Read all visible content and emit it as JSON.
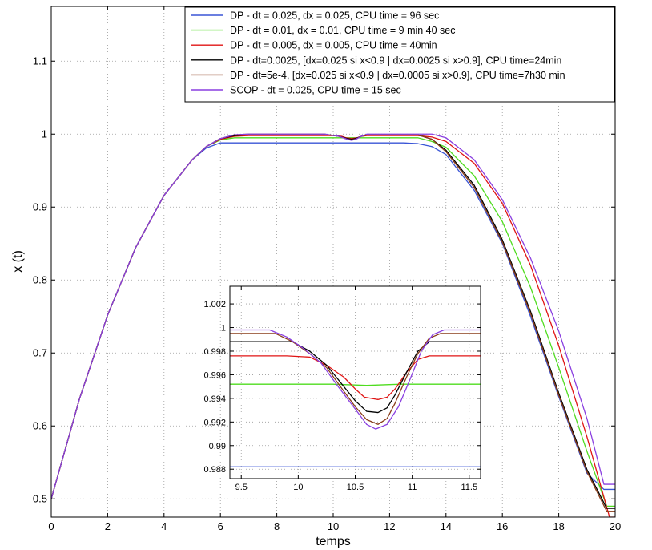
{
  "chart_data": {
    "type": "line",
    "title": "",
    "xlabel": "temps",
    "ylabel": "x (t)",
    "xlim": [
      0,
      20
    ],
    "ylim": [
      0.475,
      1.175
    ],
    "xticks": [
      "0",
      "2",
      "4",
      "6",
      "8",
      "10",
      "12",
      "14",
      "16",
      "18",
      "20"
    ],
    "yticks": [
      "0.5",
      "0.6",
      "0.7",
      "0.8",
      "0.9",
      "1",
      "1.1"
    ],
    "grid": true,
    "legend_position": "top-right",
    "series": [
      {
        "name": "DP - dt = 0.025, dx = 0.025, CPU time = 96 sec",
        "color": "#3a55d6",
        "points": [
          [
            0,
            0.5
          ],
          [
            1,
            0.637
          ],
          [
            2,
            0.752
          ],
          [
            3,
            0.845
          ],
          [
            4,
            0.916
          ],
          [
            5,
            0.965
          ],
          [
            5.5,
            0.981
          ],
          [
            6,
            0.988
          ],
          [
            9,
            0.988
          ],
          [
            10,
            0.988
          ],
          [
            11,
            0.988
          ],
          [
            12,
            0.988
          ],
          [
            12.5,
            0.988
          ],
          [
            13,
            0.987
          ],
          [
            13.5,
            0.983
          ],
          [
            14,
            0.972
          ],
          [
            15,
            0.923
          ],
          [
            16,
            0.85
          ],
          [
            17,
            0.75
          ],
          [
            18,
            0.64
          ],
          [
            19,
            0.535
          ],
          [
            19.6,
            0.513
          ],
          [
            20,
            0.513
          ]
        ]
      },
      {
        "name": "DP - dt = 0.01, dx = 0.01, CPU time = 9 min 40 sec",
        "color": "#4fdc1f",
        "points": [
          [
            0,
            0.5
          ],
          [
            1,
            0.637
          ],
          [
            2,
            0.752
          ],
          [
            3,
            0.845
          ],
          [
            4,
            0.916
          ],
          [
            5,
            0.965
          ],
          [
            5.5,
            0.983
          ],
          [
            6,
            0.992
          ],
          [
            6.5,
            0.995
          ],
          [
            9,
            0.995
          ],
          [
            10,
            0.995
          ],
          [
            11,
            0.995
          ],
          [
            12,
            0.995
          ],
          [
            13,
            0.995
          ],
          [
            13.5,
            0.99
          ],
          [
            14,
            0.982
          ],
          [
            15,
            0.943
          ],
          [
            16,
            0.88
          ],
          [
            17,
            0.79
          ],
          [
            18,
            0.68
          ],
          [
            19,
            0.565
          ],
          [
            19.7,
            0.49
          ],
          [
            20,
            0.49
          ]
        ]
      },
      {
        "name": "DP - dt = 0.005, dx = 0.005, CPU time = 40min",
        "color": "#e01414",
        "points": [
          [
            0,
            0.5
          ],
          [
            1,
            0.637
          ],
          [
            2,
            0.752
          ],
          [
            3,
            0.845
          ],
          [
            4,
            0.916
          ],
          [
            5,
            0.965
          ],
          [
            5.5,
            0.983
          ],
          [
            6,
            0.993
          ],
          [
            6.5,
            0.997
          ],
          [
            7,
            0.998
          ],
          [
            9,
            0.998
          ],
          [
            10,
            0.998
          ],
          [
            10.3,
            0.997
          ],
          [
            10.45,
            0.995
          ],
          [
            10.65,
            0.994
          ],
          [
            10.85,
            0.995
          ],
          [
            11,
            0.997
          ],
          [
            11.2,
            0.998
          ],
          [
            12,
            0.998
          ],
          [
            13,
            0.998
          ],
          [
            13.5,
            0.996
          ],
          [
            14,
            0.99
          ],
          [
            15,
            0.96
          ],
          [
            16,
            0.905
          ],
          [
            17,
            0.82
          ],
          [
            18,
            0.71
          ],
          [
            19,
            0.585
          ],
          [
            19.8,
            0.475
          ],
          [
            20,
            0.475
          ]
        ]
      },
      {
        "name": "DP - dt=0.0025, [dx=0.025 si x<0.9 | dx=0.0025 si x>0.9], CPU time=24min",
        "color": "#000000",
        "points": [
          [
            0,
            0.5
          ],
          [
            1,
            0.637
          ],
          [
            2,
            0.752
          ],
          [
            3,
            0.845
          ],
          [
            4,
            0.916
          ],
          [
            5,
            0.965
          ],
          [
            5.5,
            0.983
          ],
          [
            6,
            0.994
          ],
          [
            6.5,
            0.998
          ],
          [
            7,
            0.999
          ],
          [
            9,
            0.999
          ],
          [
            9.8,
            0.999
          ],
          [
            10.2,
            0.997
          ],
          [
            10.5,
            0.994
          ],
          [
            10.65,
            0.993
          ],
          [
            10.8,
            0.994
          ],
          [
            11,
            0.997
          ],
          [
            11.2,
            0.999
          ],
          [
            12,
            0.999
          ],
          [
            13,
            0.999
          ],
          [
            13.5,
            0.993
          ],
          [
            14,
            0.978
          ],
          [
            15,
            0.93
          ],
          [
            16,
            0.855
          ],
          [
            17,
            0.757
          ],
          [
            18,
            0.645
          ],
          [
            19,
            0.54
          ],
          [
            19.7,
            0.487
          ],
          [
            20,
            0.487
          ]
        ]
      },
      {
        "name": "DP - dt=5e-4, [dx=0.025 si x<0.9 | dx=0.0005 si x>0.9], CPU time=7h30 min",
        "color": "#8a3d1a",
        "points": [
          [
            0,
            0.5
          ],
          [
            1,
            0.637
          ],
          [
            2,
            0.752
          ],
          [
            3,
            0.845
          ],
          [
            4,
            0.916
          ],
          [
            5,
            0.965
          ],
          [
            5.5,
            0.983
          ],
          [
            6,
            0.994
          ],
          [
            6.5,
            0.999
          ],
          [
            7,
            1.0
          ],
          [
            9,
            1.0
          ],
          [
            9.7,
            1.0
          ],
          [
            10.2,
            0.997
          ],
          [
            10.5,
            0.993
          ],
          [
            10.65,
            0.992
          ],
          [
            10.8,
            0.993
          ],
          [
            11,
            0.997
          ],
          [
            11.2,
            0.999
          ],
          [
            12,
            0.999
          ],
          [
            13,
            0.999
          ],
          [
            13.5,
            0.993
          ],
          [
            14,
            0.976
          ],
          [
            15,
            0.927
          ],
          [
            16,
            0.852
          ],
          [
            17,
            0.754
          ],
          [
            18,
            0.642
          ],
          [
            19,
            0.537
          ],
          [
            19.7,
            0.483
          ],
          [
            20,
            0.483
          ]
        ]
      },
      {
        "name": "SCOP - dt = 0.025, CPU time = 15 sec",
        "color": "#8a3fe0",
        "points": [
          [
            0,
            0.5
          ],
          [
            1,
            0.637
          ],
          [
            2,
            0.752
          ],
          [
            3,
            0.845
          ],
          [
            4,
            0.916
          ],
          [
            5,
            0.965
          ],
          [
            5.5,
            0.983
          ],
          [
            6,
            0.994
          ],
          [
            6.5,
            0.999
          ],
          [
            7,
            1.0
          ],
          [
            9,
            1.0
          ],
          [
            9.7,
            1.0
          ],
          [
            10.2,
            0.997
          ],
          [
            10.5,
            0.993
          ],
          [
            10.65,
            0.9915
          ],
          [
            10.8,
            0.993
          ],
          [
            11,
            0.997
          ],
          [
            11.2,
            1.0
          ],
          [
            12,
            1.0
          ],
          [
            13,
            1.0
          ],
          [
            13.5,
            1.0
          ],
          [
            14,
            0.995
          ],
          [
            15,
            0.965
          ],
          [
            16,
            0.91
          ],
          [
            17,
            0.83
          ],
          [
            18,
            0.73
          ],
          [
            19,
            0.61
          ],
          [
            19.6,
            0.52
          ],
          [
            20,
            0.52
          ]
        ]
      }
    ],
    "inset": {
      "xlim": [
        9.4,
        11.6
      ],
      "ylim": [
        0.9872,
        1.0035
      ],
      "xticks": [
        "9.5",
        "10",
        "10.5",
        "11",
        "11.5"
      ],
      "yticks": [
        "0.988",
        "0.99",
        "0.992",
        "0.994",
        "0.996",
        "0.998",
        "1",
        "1.002"
      ],
      "grid": true,
      "series": [
        {
          "name": "DP - dt = 0.025, dx = 0.025, CPU time = 96 sec",
          "color": "#3a55d6",
          "points": [
            [
              9.4,
              0.9882
            ],
            [
              11.6,
              0.9882
            ]
          ]
        },
        {
          "name": "DP - dt = 0.01, dx = 0.01, CPU time = 9 min 40 sec",
          "color": "#4fdc1f",
          "points": [
            [
              9.4,
              0.9952
            ],
            [
              10.3,
              0.9952
            ],
            [
              10.6,
              0.9951
            ],
            [
              10.9,
              0.9952
            ],
            [
              11.6,
              0.9952
            ]
          ]
        },
        {
          "name": "DP - dt = 0.005, dx = 0.005, CPU time = 40min",
          "color": "#e01414",
          "points": [
            [
              9.4,
              0.9976
            ],
            [
              9.9,
              0.9976
            ],
            [
              10.1,
              0.9975
            ],
            [
              10.25,
              0.9968
            ],
            [
              10.4,
              0.9958
            ],
            [
              10.5,
              0.9948
            ],
            [
              10.58,
              0.9941
            ],
            [
              10.7,
              0.9939
            ],
            [
              10.78,
              0.9941
            ],
            [
              10.85,
              0.9948
            ],
            [
              10.95,
              0.9962
            ],
            [
              11.05,
              0.9973
            ],
            [
              11.15,
              0.9976
            ],
            [
              11.6,
              0.9976
            ]
          ]
        },
        {
          "name": "DP - dt=0.0025, [dx=0.025 si x<0.9 | dx=0.0025 si x>0.9], CPU time=24min",
          "color": "#000000",
          "points": [
            [
              9.4,
              0.9988
            ],
            [
              9.95,
              0.9988
            ],
            [
              10.1,
              0.998
            ],
            [
              10.25,
              0.9968
            ],
            [
              10.4,
              0.995
            ],
            [
              10.5,
              0.9938
            ],
            [
              10.6,
              0.9929
            ],
            [
              10.7,
              0.9928
            ],
            [
              10.78,
              0.9932
            ],
            [
              10.85,
              0.9943
            ],
            [
              10.95,
              0.9962
            ],
            [
              11.05,
              0.998
            ],
            [
              11.15,
              0.9988
            ],
            [
              11.6,
              0.9988
            ]
          ]
        },
        {
          "name": "DP - dt=5e-4, [dx=0.025 si x<0.9 | dx=0.0005 si x>0.9], CPU time=7h30 min",
          "color": "#8a3d1a",
          "points": [
            [
              9.4,
              0.9995
            ],
            [
              9.8,
              0.9995
            ],
            [
              9.95,
              0.9988
            ],
            [
              10.1,
              0.9978
            ],
            [
              10.25,
              0.9966
            ],
            [
              10.4,
              0.9946
            ],
            [
              10.5,
              0.9933
            ],
            [
              10.6,
              0.9922
            ],
            [
              10.7,
              0.9918
            ],
            [
              10.78,
              0.9923
            ],
            [
              10.85,
              0.9936
            ],
            [
              10.95,
              0.9958
            ],
            [
              11.05,
              0.9978
            ],
            [
              11.15,
              0.9991
            ],
            [
              11.25,
              0.9995
            ],
            [
              11.6,
              0.9995
            ]
          ]
        },
        {
          "name": "SCOP - dt = 0.025, CPU time = 15 sec",
          "color": "#8a3fe0",
          "points": [
            [
              9.4,
              0.9998
            ],
            [
              9.75,
              0.9998
            ],
            [
              9.9,
              0.9992
            ],
            [
              10.05,
              0.9982
            ],
            [
              10.2,
              0.997
            ],
            [
              10.35,
              0.995
            ],
            [
              10.5,
              0.9931
            ],
            [
              10.6,
              0.9918
            ],
            [
              10.68,
              0.9914
            ],
            [
              10.78,
              0.9918
            ],
            [
              10.88,
              0.9933
            ],
            [
              10.98,
              0.9956
            ],
            [
              11.08,
              0.998
            ],
            [
              11.18,
              0.9994
            ],
            [
              11.28,
              0.9998
            ],
            [
              11.6,
              0.9998
            ]
          ]
        }
      ]
    }
  }
}
